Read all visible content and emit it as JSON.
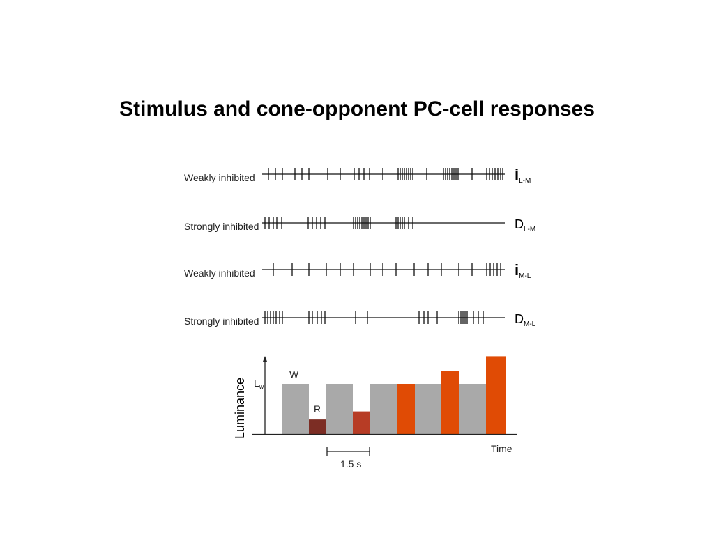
{
  "slide": {
    "title": "Stimulus and cone-opponent PC-cell responses"
  },
  "spike_trains": [
    {
      "label": "Weakly inhibited",
      "code_main": "i",
      "code_sub": "L-M",
      "code_bold": true,
      "spikes": [
        385,
        395,
        405,
        423,
        433,
        443,
        470,
        488,
        508,
        515,
        522,
        530,
        549,
        571,
        574,
        577,
        580,
        583,
        586,
        589,
        592,
        612,
        636,
        639,
        642,
        645,
        648,
        651,
        654,
        657,
        677,
        698,
        702,
        706,
        710,
        714,
        718,
        721
      ]
    },
    {
      "label": "Strongly inhibited",
      "code_main": "D",
      "code_sub": "L-M",
      "code_bold": false,
      "spikes": [
        380,
        386,
        392,
        397,
        404,
        442,
        448,
        454,
        460,
        466,
        507,
        510,
        513,
        516,
        519,
        522,
        525,
        528,
        531,
        568,
        571,
        574,
        577,
        580,
        586,
        592
      ]
    },
    {
      "label": "Weakly inhibited",
      "code_main": "i",
      "code_sub": "M-L",
      "code_bold": true,
      "spikes": [
        392,
        419,
        443,
        468,
        488,
        507,
        531,
        549,
        568,
        594,
        614,
        633,
        658,
        677,
        698,
        703,
        708,
        713,
        718
      ]
    },
    {
      "label": "Strongly inhibited",
      "code_main": "D",
      "code_sub": "M-L",
      "code_bold": false,
      "spikes": [
        380,
        384,
        388,
        392,
        396,
        401,
        405,
        443,
        448,
        455,
        461,
        466,
        510,
        527,
        601,
        608,
        614,
        627,
        658,
        661,
        664,
        667,
        670,
        679,
        686,
        693
      ]
    }
  ],
  "stimulus": {
    "ylabel": "Luminance",
    "y_level_label": "L",
    "y_level_sub": "w",
    "white_label": "W",
    "red_label": "R",
    "xlabel": "Time",
    "scale_label": "1.5 s",
    "colors": {
      "gray": "#a9a9a9",
      "dark_red": "#7c2d24",
      "red": "#b73c25",
      "orange": "#e04b05"
    },
    "bars_relative_luminance": [
      {
        "color": "gray",
        "value": 1.0
      },
      {
        "color": "dark_red",
        "value": 0.29
      },
      {
        "color": "gray",
        "value": 1.0
      },
      {
        "color": "red",
        "value": 0.45
      },
      {
        "color": "gray",
        "value": 1.0
      },
      {
        "color": "orange",
        "value": 1.0
      },
      {
        "color": "gray",
        "value": 1.0
      },
      {
        "color": "orange",
        "value": 1.25
      },
      {
        "color": "gray",
        "value": 1.0
      },
      {
        "color": "orange",
        "value": 1.55
      }
    ]
  }
}
